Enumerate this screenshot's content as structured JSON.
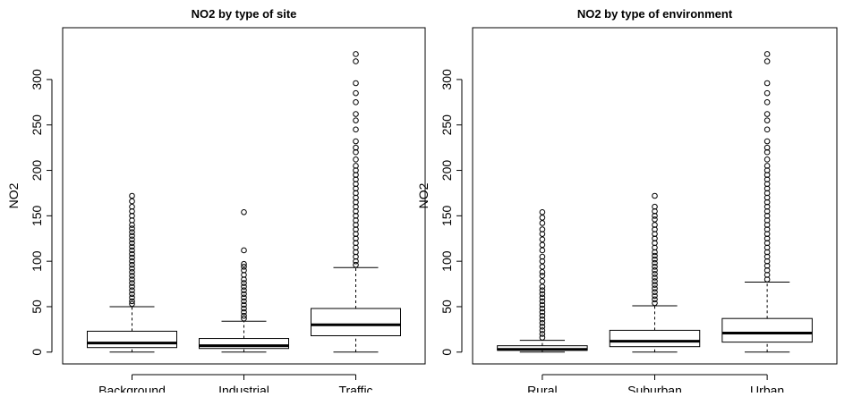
{
  "chart_data": [
    {
      "type": "boxplot",
      "title": "NO2 by type of site",
      "ylabel": "NO2",
      "ylim": [
        -13,
        357
      ],
      "yticks": [
        0,
        50,
        100,
        150,
        200,
        250,
        300
      ],
      "categories": [
        "Background",
        "Industrial",
        "Traffic"
      ],
      "boxes": [
        {
          "min": 0,
          "q1": 5,
          "median": 10,
          "q3": 23,
          "max": 50,
          "outliers": [
            53,
            56,
            60,
            64,
            68,
            72,
            76,
            80,
            84,
            88,
            92,
            96,
            100,
            104,
            108,
            112,
            116,
            120,
            124,
            128,
            132,
            136,
            140,
            145,
            150,
            155,
            160,
            166,
            172
          ]
        },
        {
          "min": 0,
          "q1": 4,
          "median": 7,
          "q3": 15,
          "max": 34,
          "outliers": [
            37,
            40,
            44,
            48,
            52,
            56,
            60,
            64,
            68,
            72,
            76,
            80,
            85,
            90,
            94,
            97,
            112,
            154
          ]
        },
        {
          "min": 0,
          "q1": 18,
          "median": 30,
          "q3": 48,
          "max": 93,
          "outliers": [
            96,
            100,
            105,
            110,
            115,
            120,
            125,
            130,
            135,
            140,
            145,
            150,
            155,
            160,
            165,
            170,
            175,
            180,
            185,
            190,
            195,
            200,
            205,
            212,
            220,
            225,
            232,
            245,
            255,
            262,
            275,
            285,
            296,
            320,
            328
          ]
        }
      ]
    },
    {
      "type": "boxplot",
      "title": "NO2 by type of environment",
      "ylabel": "NO2",
      "ylim": [
        -13,
        357
      ],
      "yticks": [
        0,
        50,
        100,
        150,
        200,
        250,
        300
      ],
      "categories": [
        "Rural",
        "Suburban",
        "Urban"
      ],
      "boxes": [
        {
          "min": 0,
          "q1": 2,
          "median": 3,
          "q3": 7,
          "max": 13,
          "outliers": [
            16,
            20,
            24,
            28,
            32,
            36,
            40,
            44,
            48,
            52,
            56,
            60,
            64,
            68,
            72,
            78,
            84,
            88,
            94,
            100,
            105,
            112,
            118,
            124,
            130,
            135,
            142,
            148,
            154
          ]
        },
        {
          "min": 0,
          "q1": 6,
          "median": 12,
          "q3": 24,
          "max": 51,
          "outliers": [
            54,
            58,
            62,
            66,
            70,
            74,
            78,
            82,
            86,
            90,
            94,
            98,
            102,
            106,
            110,
            115,
            120,
            125,
            130,
            135,
            140,
            146,
            150,
            155,
            160,
            172
          ]
        },
        {
          "min": 0,
          "q1": 11,
          "median": 21,
          "q3": 37,
          "max": 77,
          "outliers": [
            80,
            85,
            90,
            95,
            100,
            105,
            110,
            115,
            120,
            125,
            130,
            135,
            140,
            145,
            150,
            155,
            160,
            165,
            170,
            175,
            180,
            185,
            190,
            195,
            200,
            205,
            212,
            220,
            225,
            232,
            245,
            255,
            262,
            275,
            285,
            296,
            320,
            328
          ]
        }
      ]
    }
  ]
}
